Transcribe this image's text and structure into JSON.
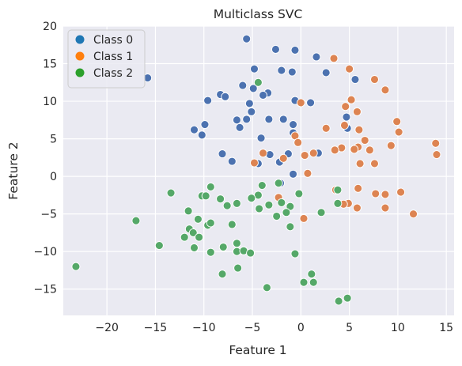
{
  "chart_data": {
    "type": "scatter",
    "title": "Multiclass SVC",
    "xlabel": "Feature 1",
    "ylabel": "Feature 2",
    "xlim": [
      -24.5,
      15.8
    ],
    "ylim": [
      -18.5,
      20
    ],
    "xticks": [
      -20,
      -15,
      -10,
      -5,
      0,
      5,
      10,
      15
    ],
    "yticks": [
      -15,
      -10,
      -5,
      0,
      5,
      10,
      15,
      20
    ],
    "grid": true,
    "legend_position": "top-left",
    "background": "#eaeaf2",
    "series": [
      {
        "name": "Class 0",
        "color": "#4c72b0",
        "legend_color": "#1f77b4",
        "points": [
          [
            -5.6,
            18.3
          ],
          [
            -2.6,
            16.9
          ],
          [
            -0.6,
            16.8
          ],
          [
            1.6,
            15.9
          ],
          [
            -15.8,
            13.1
          ],
          [
            -4.8,
            14.3
          ],
          [
            -2.0,
            14.1
          ],
          [
            -0.9,
            13.9
          ],
          [
            2.6,
            13.8
          ],
          [
            5.6,
            12.9
          ],
          [
            -6.0,
            12.1
          ],
          [
            -4.9,
            11.7
          ],
          [
            -3.4,
            11.1
          ],
          [
            -3.9,
            10.8
          ],
          [
            -8.3,
            10.9
          ],
          [
            -7.8,
            10.6
          ],
          [
            -9.6,
            10.1
          ],
          [
            -5.3,
            9.7
          ],
          [
            -0.6,
            10.1
          ],
          [
            1.0,
            9.8
          ],
          [
            -5.1,
            8.6
          ],
          [
            4.7,
            7.9
          ],
          [
            -6.6,
            7.5
          ],
          [
            -5.6,
            7.6
          ],
          [
            -3.3,
            7.6
          ],
          [
            -1.8,
            7.6
          ],
          [
            -9.9,
            6.9
          ],
          [
            -0.8,
            6.9
          ],
          [
            -11.0,
            6.2
          ],
          [
            -6.3,
            6.5
          ],
          [
            -0.8,
            5.8
          ],
          [
            4.8,
            6.4
          ],
          [
            -10.2,
            5.5
          ],
          [
            -4.1,
            5.1
          ],
          [
            -8.1,
            3.0
          ],
          [
            -1.3,
            3.0
          ],
          [
            -3.2,
            2.9
          ],
          [
            -7.1,
            2.0
          ],
          [
            1.8,
            3.1
          ],
          [
            -4.4,
            1.7
          ],
          [
            -2.2,
            1.9
          ],
          [
            -0.8,
            0.3
          ],
          [
            -2.1,
            -0.9
          ]
        ]
      },
      {
        "name": "Class 1",
        "color": "#dd8452",
        "legend_color": "#ff7f0e",
        "points": [
          [
            3.4,
            15.7
          ],
          [
            5.0,
            14.3
          ],
          [
            7.6,
            12.9
          ],
          [
            8.7,
            11.5
          ],
          [
            5.2,
            10.2
          ],
          [
            0.0,
            9.8
          ],
          [
            4.6,
            9.3
          ],
          [
            5.8,
            8.6
          ],
          [
            9.9,
            7.3
          ],
          [
            4.5,
            6.8
          ],
          [
            10.1,
            5.9
          ],
          [
            6.0,
            6.2
          ],
          [
            -0.6,
            5.4
          ],
          [
            2.6,
            6.4
          ],
          [
            6.6,
            4.8
          ],
          [
            -0.3,
            4.5
          ],
          [
            5.9,
            3.9
          ],
          [
            4.2,
            3.8
          ],
          [
            5.5,
            3.6
          ],
          [
            7.1,
            3.5
          ],
          [
            9.3,
            4.1
          ],
          [
            13.9,
            4.4
          ],
          [
            -3.9,
            3.1
          ],
          [
            -1.8,
            2.4
          ],
          [
            0.4,
            2.8
          ],
          [
            1.3,
            3.1
          ],
          [
            3.5,
            3.5
          ],
          [
            14.0,
            2.9
          ],
          [
            6.1,
            1.7
          ],
          [
            7.6,
            1.7
          ],
          [
            -4.8,
            1.8
          ],
          [
            0.7,
            0.4
          ],
          [
            5.9,
            -1.6
          ],
          [
            3.6,
            -1.8
          ],
          [
            7.7,
            -2.3
          ],
          [
            8.7,
            -2.4
          ],
          [
            10.3,
            -2.1
          ],
          [
            -2.3,
            -2.8
          ],
          [
            4.9,
            -3.6
          ],
          [
            4.4,
            -3.7
          ],
          [
            5.8,
            -4.2
          ],
          [
            8.7,
            -4.2
          ],
          [
            0.3,
            -5.6
          ],
          [
            11.6,
            -5.0
          ]
        ]
      },
      {
        "name": "Class 2",
        "color": "#55a868",
        "legend_color": "#2ca02c",
        "points": [
          [
            -4.4,
            12.5
          ],
          [
            -4.0,
            -1.2
          ],
          [
            -2.3,
            -0.9
          ],
          [
            -9.3,
            -1.4
          ],
          [
            -13.4,
            -2.2
          ],
          [
            -10.2,
            -2.6
          ],
          [
            -9.8,
            -2.6
          ],
          [
            -8.3,
            -3.0
          ],
          [
            -4.4,
            -2.5
          ],
          [
            -5.1,
            -2.9
          ],
          [
            -0.2,
            -2.3
          ],
          [
            -3.3,
            -3.8
          ],
          [
            -2.0,
            -3.5
          ],
          [
            -6.6,
            -3.6
          ],
          [
            -7.6,
            -3.9
          ],
          [
            -4.3,
            -4.3
          ],
          [
            -1.1,
            -4.0
          ],
          [
            -11.6,
            -4.6
          ],
          [
            -10.6,
            -5.7
          ],
          [
            3.8,
            -3.6
          ],
          [
            3.8,
            -1.8
          ],
          [
            2.1,
            -4.8
          ],
          [
            -17.0,
            -5.9
          ],
          [
            -2.5,
            -5.3
          ],
          [
            -1.5,
            -4.8
          ],
          [
            -9.6,
            -6.5
          ],
          [
            -9.3,
            -6.2
          ],
          [
            -7.1,
            -6.4
          ],
          [
            -11.5,
            -7.0
          ],
          [
            -11.1,
            -7.5
          ],
          [
            -1.1,
            -6.7
          ],
          [
            -12.0,
            -8.1
          ],
          [
            -10.5,
            -8.1
          ],
          [
            -6.6,
            -8.9
          ],
          [
            -8.0,
            -9.4
          ],
          [
            -14.6,
            -9.2
          ],
          [
            -11.0,
            -9.5
          ],
          [
            -9.3,
            -10.1
          ],
          [
            -6.6,
            -10.0
          ],
          [
            -5.9,
            -9.9
          ],
          [
            -5.2,
            -10.2
          ],
          [
            -0.6,
            -10.3
          ],
          [
            -8.1,
            -13.0
          ],
          [
            -6.5,
            -12.2
          ],
          [
            1.1,
            -13.0
          ],
          [
            0.3,
            -14.1
          ],
          [
            1.3,
            -14.1
          ],
          [
            -3.5,
            -14.8
          ],
          [
            -23.2,
            -12.0
          ],
          [
            3.9,
            -16.6
          ],
          [
            4.8,
            -16.2
          ]
        ]
      }
    ]
  }
}
